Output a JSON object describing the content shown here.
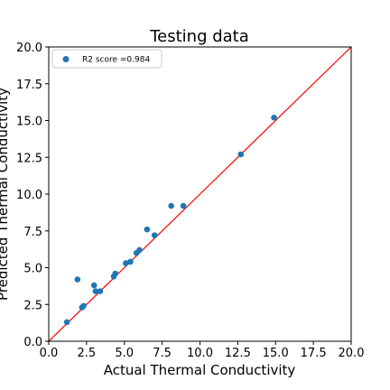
{
  "chart_data": {
    "type": "scatter",
    "title": "Testing data",
    "xlabel": "Actual Thermal Conductivity",
    "ylabel": "Predicted Thermal Conductivity",
    "xlim": [
      0,
      20
    ],
    "ylim": [
      0,
      20
    ],
    "xticks": [
      "0.0",
      "2.5",
      "5.0",
      "7.5",
      "10.0",
      "12.5",
      "15.0",
      "17.5",
      "20.0"
    ],
    "yticks": [
      "0.0",
      "2.5",
      "5.0",
      "7.5",
      "10.0",
      "12.5",
      "15.0",
      "17.5",
      "20.0"
    ],
    "grid": false,
    "legend_position": "top-left",
    "series": [
      {
        "name": "R2 score =0.984",
        "color": "#1f77b4",
        "points": [
          {
            "x": 1.2,
            "y": 1.3
          },
          {
            "x": 1.9,
            "y": 4.2
          },
          {
            "x": 2.2,
            "y": 2.3
          },
          {
            "x": 2.3,
            "y": 2.4
          },
          {
            "x": 3.0,
            "y": 3.8
          },
          {
            "x": 3.1,
            "y": 3.4
          },
          {
            "x": 3.4,
            "y": 3.4
          },
          {
            "x": 4.3,
            "y": 4.4
          },
          {
            "x": 4.4,
            "y": 4.6
          },
          {
            "x": 5.1,
            "y": 5.3
          },
          {
            "x": 5.4,
            "y": 5.4
          },
          {
            "x": 5.8,
            "y": 6.0
          },
          {
            "x": 6.0,
            "y": 6.2
          },
          {
            "x": 6.5,
            "y": 7.6
          },
          {
            "x": 7.0,
            "y": 7.2
          },
          {
            "x": 8.1,
            "y": 9.2
          },
          {
            "x": 8.9,
            "y": 9.2
          },
          {
            "x": 12.7,
            "y": 12.7
          },
          {
            "x": 14.9,
            "y": 15.2
          }
        ]
      }
    ],
    "reference_line": {
      "x": [
        0,
        20
      ],
      "y": [
        0,
        20
      ],
      "color": "#ff0000"
    }
  }
}
